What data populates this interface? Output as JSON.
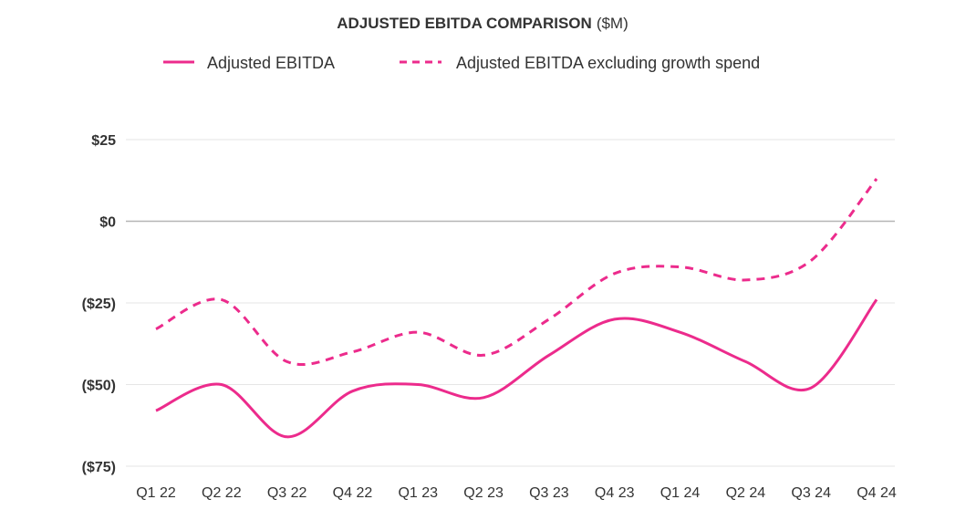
{
  "colors": {
    "series": "#ec2b8c",
    "grid": "#e6e6e6",
    "zero_line": "#b5b5b5",
    "text": "#333333"
  },
  "chart_data": {
    "type": "line",
    "title": "ADJUSTED EBITDA COMPARISON",
    "title_unit": "($M)",
    "xlabel": "",
    "ylabel": "",
    "categories": [
      "Q1 22",
      "Q2 22",
      "Q3 22",
      "Q4 22",
      "Q1 23",
      "Q2 23",
      "Q3 23",
      "Q4 23",
      "Q1 24",
      "Q2 24",
      "Q3 24",
      "Q4 24"
    ],
    "series": [
      {
        "name": "Adjusted EBITDA",
        "style": "solid",
        "values": [
          -58,
          -50,
          -66,
          -52,
          -50,
          -54,
          -41,
          -30,
          -34,
          -43,
          -51,
          -24
        ]
      },
      {
        "name": "Adjusted EBITDA excluding growth spend",
        "style": "dashed",
        "values": [
          -33,
          -24,
          -43,
          -40,
          -34,
          -41,
          -30,
          -16,
          -14,
          -18,
          -12,
          13
        ]
      }
    ],
    "y_ticks": [
      25,
      0,
      -25,
      -50,
      -75
    ],
    "y_tick_labels": [
      "$25",
      "$0",
      "($25)",
      "($50)",
      "($75)"
    ],
    "ylim": [
      -75,
      25
    ],
    "grid": true,
    "legend_position": "top"
  }
}
